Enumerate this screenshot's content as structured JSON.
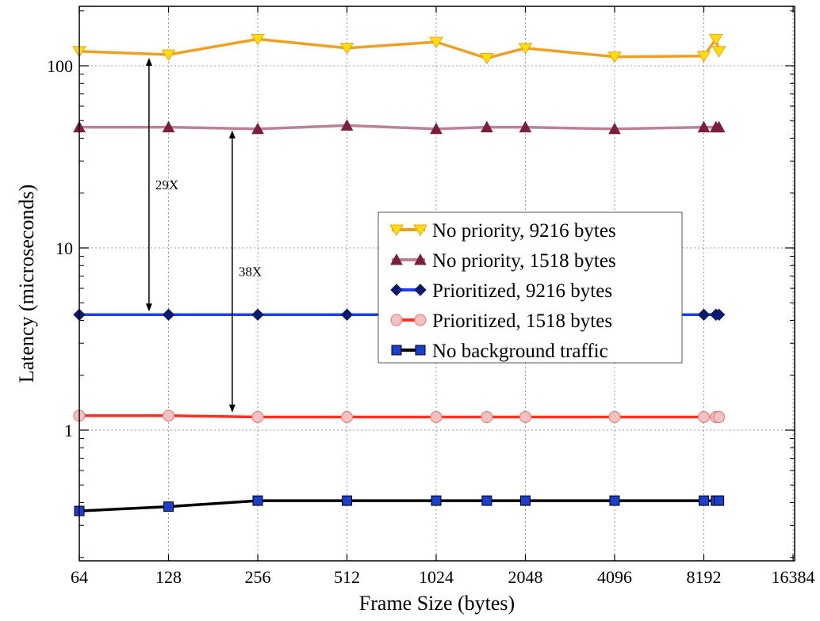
{
  "chart_data": {
    "type": "line",
    "xlabel": "Frame Size (bytes)",
    "ylabel": "Latency (microseconds)",
    "xscale": "log2",
    "yscale": "log10",
    "xlim": [
      64,
      16384
    ],
    "ylim": [
      0.15,
      200
    ],
    "x_ticks": [
      "64",
      "128",
      "256",
      "512",
      "1024",
      "2048",
      "4096",
      "8192",
      "16384"
    ],
    "y_ticks": [
      "1",
      "10",
      "100"
    ],
    "grid": true,
    "legend_position": "center-right",
    "x": [
      64,
      128,
      256,
      512,
      1024,
      1518,
      2048,
      4096,
      8192,
      9000,
      9216
    ],
    "series": [
      {
        "name": "No priority, 9216 bytes",
        "color": "#f0a020",
        "marker": "triangle-down",
        "marker_fill": "#ffe000",
        "values": [
          120,
          115,
          140,
          125,
          135,
          110,
          125,
          112,
          113,
          140,
          120
        ]
      },
      {
        "name": "No priority, 1518 bytes",
        "color": "#c07f98",
        "marker": "triangle-up",
        "marker_fill": "#7a1f3c",
        "values": [
          46,
          46,
          45,
          47,
          45,
          46,
          46,
          45,
          46,
          46,
          46
        ]
      },
      {
        "name": "Prioritized, 9216 bytes",
        "color": "#1a3fff",
        "marker": "diamond",
        "marker_fill": "#0a1a6e",
        "values": [
          4.3,
          4.3,
          4.3,
          4.3,
          4.3,
          4.3,
          4.3,
          4.3,
          4.3,
          4.3,
          4.3
        ]
      },
      {
        "name": "Prioritized, 1518 bytes",
        "color": "#ff3020",
        "marker": "circle",
        "marker_fill": "#f4c0c0",
        "values": [
          1.2,
          1.2,
          1.18,
          1.18,
          1.18,
          1.18,
          1.18,
          1.18,
          1.18,
          1.18,
          1.18
        ]
      },
      {
        "name": "No background traffic",
        "color": "#000000",
        "marker": "square",
        "marker_fill": "#1a3fd0",
        "values": [
          0.36,
          0.38,
          0.41,
          0.41,
          0.41,
          0.41,
          0.41,
          0.41,
          0.41,
          0.41,
          0.41
        ]
      }
    ],
    "annotations": [
      {
        "text": "29X",
        "x": 110,
        "y_from": 4.3,
        "y_to": 115
      },
      {
        "text": "38X",
        "x": 210,
        "y_from": 1.2,
        "y_to": 46
      }
    ]
  }
}
